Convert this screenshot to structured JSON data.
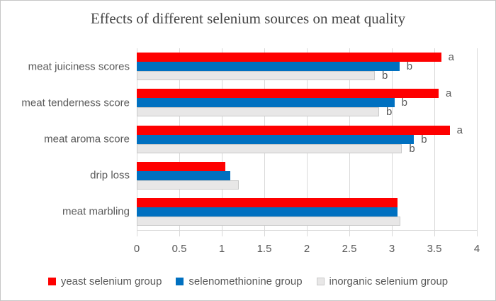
{
  "title": "Effects of different selenium sources on meat quality",
  "chart_data": {
    "type": "bar",
    "orientation": "horizontal",
    "title": "Effects of different selenium sources on meat quality",
    "categories": [
      "meat juiciness scores",
      "meat tenderness score",
      "meat aroma score",
      "drip loss",
      "meat marbling"
    ],
    "series": [
      {
        "name": "yeast selenium group",
        "color": "#fe0000",
        "values": [
          3.58,
          3.55,
          3.68,
          1.04,
          3.07
        ],
        "sig_labels": [
          "a",
          "a",
          "a",
          "",
          ""
        ]
      },
      {
        "name": "selenomethionine group",
        "color": "#0070c0",
        "values": [
          3.09,
          3.03,
          3.26,
          1.1,
          3.07
        ],
        "sig_labels": [
          "b",
          "b",
          "b",
          "",
          ""
        ]
      },
      {
        "name": "inorganic selenium group",
        "color": "#e8e7e7",
        "border_color": "#c9c9c9",
        "values": [
          2.8,
          2.85,
          3.12,
          1.2,
          3.1
        ],
        "sig_labels": [
          "b",
          "b",
          "b",
          "",
          ""
        ]
      }
    ],
    "xlabel": "",
    "ylabel": "",
    "xlim": [
      0,
      4
    ],
    "x_ticks": [
      "0",
      "0.5",
      "1",
      "1.5",
      "2",
      "2.5",
      "3",
      "3.5",
      "4"
    ],
    "grid": "vertical",
    "legend_position": "bottom"
  },
  "style": {
    "gridline_color": "#d9d9d9",
    "text_color": "#595959",
    "title_color": "#454545",
    "frame_border_color": "#c6c6c6"
  }
}
